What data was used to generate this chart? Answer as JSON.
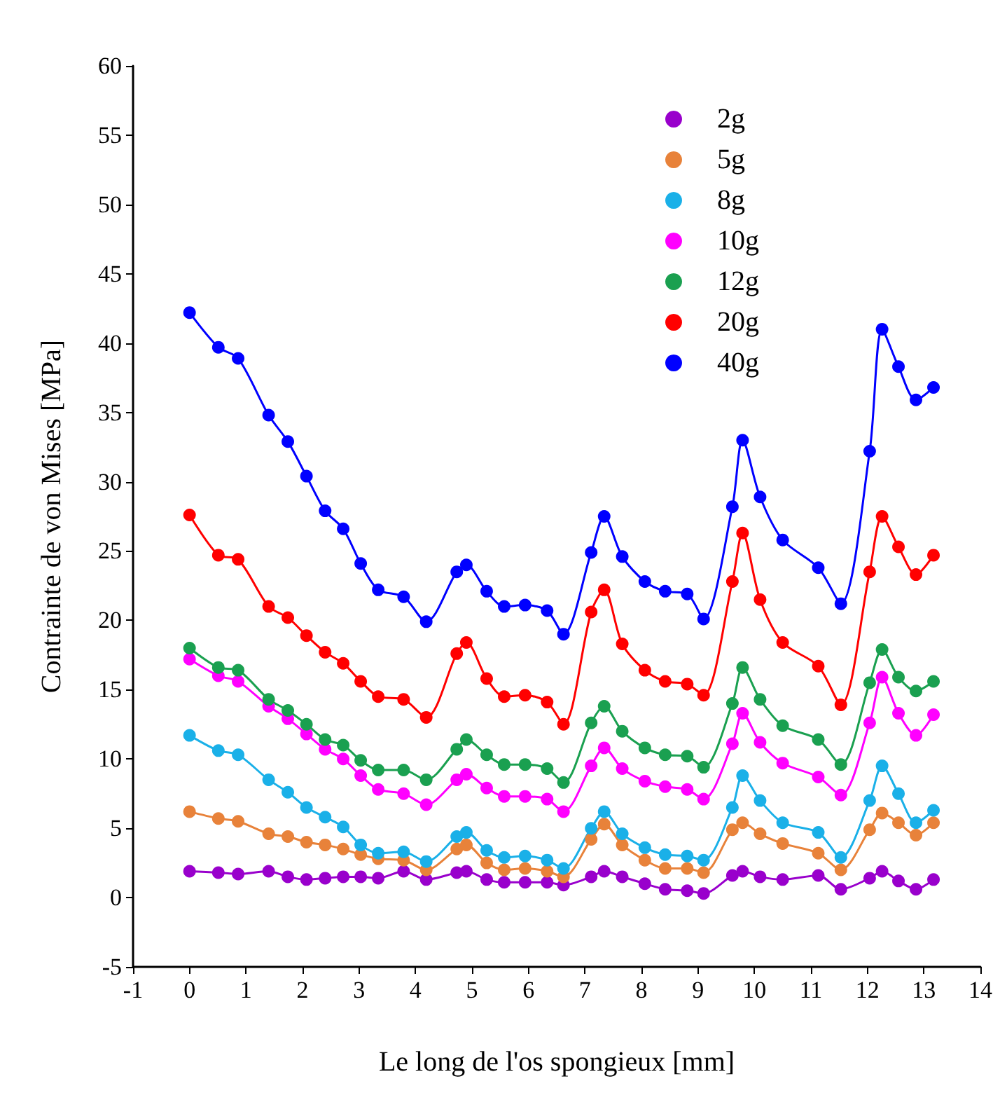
{
  "chart_data": {
    "type": "line",
    "xlabel": "Le long de l'os spongieux [mm]",
    "ylabel": "Contrainte de von Mises [MPa]",
    "x": [
      0,
      0.51,
      0.86,
      1.4,
      1.74,
      2.07,
      2.4,
      2.72,
      3.03,
      3.34,
      3.79,
      4.19,
      4.73,
      4.9,
      5.26,
      5.57,
      5.94,
      6.33,
      6.62,
      7.11,
      7.34,
      7.66,
      8.06,
      8.42,
      8.81,
      9.1,
      9.61,
      9.79,
      10.1,
      10.5,
      11.13,
      11.53,
      12.04,
      12.26,
      12.55,
      12.86,
      13.17
    ],
    "series": [
      {
        "name": "2g",
        "color": "#9900cc",
        "values": [
          1.9,
          1.8,
          1.7,
          1.9,
          1.5,
          1.3,
          1.4,
          1.5,
          1.5,
          1.4,
          1.9,
          1.3,
          1.8,
          1.9,
          1.3,
          1.1,
          1.1,
          1.1,
          0.9,
          1.5,
          1.9,
          1.5,
          1.0,
          0.6,
          0.5,
          0.3,
          1.6,
          1.9,
          1.5,
          1.3,
          1.6,
          0.6,
          1.4,
          1.9,
          1.2,
          0.6,
          1.3
        ]
      },
      {
        "name": "5g",
        "color": "#e8823a",
        "values": [
          6.2,
          5.7,
          5.5,
          4.6,
          4.4,
          4.0,
          3.8,
          3.5,
          3.1,
          2.8,
          2.7,
          2.0,
          3.5,
          3.8,
          2.5,
          2.0,
          2.1,
          1.9,
          1.5,
          4.2,
          5.3,
          3.8,
          2.7,
          2.1,
          2.1,
          1.8,
          4.9,
          5.4,
          4.6,
          3.9,
          3.2,
          2.0,
          4.9,
          6.1,
          5.4,
          4.5,
          5.4
        ]
      },
      {
        "name": "8g",
        "color": "#1ab0e8",
        "values": [
          11.7,
          10.6,
          10.3,
          8.5,
          7.6,
          6.5,
          5.8,
          5.1,
          3.8,
          3.2,
          3.3,
          2.6,
          4.4,
          4.7,
          3.4,
          2.9,
          3.0,
          2.7,
          2.1,
          5.0,
          6.2,
          4.6,
          3.6,
          3.1,
          3.0,
          2.7,
          6.5,
          8.8,
          7.0,
          5.4,
          4.7,
          2.9,
          7.0,
          9.5,
          7.5,
          5.4,
          6.3
        ]
      },
      {
        "name": "10g",
        "color": "#ff00ff",
        "values": [
          17.2,
          16.0,
          15.6,
          13.8,
          12.9,
          11.8,
          10.7,
          10.0,
          8.8,
          7.8,
          7.5,
          6.7,
          8.5,
          8.9,
          7.9,
          7.3,
          7.3,
          7.1,
          6.2,
          9.5,
          10.8,
          9.3,
          8.4,
          8.0,
          7.8,
          7.1,
          11.1,
          13.3,
          11.2,
          9.7,
          8.7,
          7.4,
          12.6,
          15.9,
          13.3,
          11.7,
          13.2
        ]
      },
      {
        "name": "12g",
        "color": "#1aa050",
        "values": [
          18.0,
          16.6,
          16.4,
          14.3,
          13.5,
          12.5,
          11.4,
          11.0,
          9.9,
          9.2,
          9.2,
          8.5,
          10.7,
          11.4,
          10.3,
          9.6,
          9.6,
          9.3,
          8.3,
          12.6,
          13.8,
          12.0,
          10.8,
          10.3,
          10.2,
          9.4,
          14.0,
          16.6,
          14.3,
          12.4,
          11.4,
          9.6,
          15.5,
          17.9,
          15.9,
          14.9,
          15.6
        ]
      },
      {
        "name": "20g",
        "color": "#ff0000",
        "values": [
          27.6,
          24.7,
          24.4,
          21.0,
          20.2,
          18.9,
          17.7,
          16.9,
          15.6,
          14.5,
          14.3,
          13.0,
          17.6,
          18.4,
          15.8,
          14.5,
          14.6,
          14.1,
          12.5,
          20.6,
          22.2,
          18.3,
          16.4,
          15.6,
          15.4,
          14.6,
          22.8,
          26.3,
          21.5,
          18.4,
          16.7,
          13.9,
          23.5,
          27.5,
          25.3,
          23.3,
          24.7
        ]
      },
      {
        "name": "40g",
        "color": "#0000ff",
        "values": [
          42.2,
          39.7,
          38.9,
          34.8,
          32.9,
          30.4,
          27.9,
          26.6,
          24.1,
          22.2,
          21.7,
          19.9,
          23.5,
          24.0,
          22.1,
          21.0,
          21.1,
          20.7,
          19.0,
          24.9,
          27.5,
          24.6,
          22.8,
          22.1,
          21.9,
          20.1,
          28.2,
          33.0,
          28.9,
          25.8,
          23.8,
          21.2,
          32.2,
          41.0,
          38.3,
          35.9,
          36.8
        ]
      }
    ],
    "xlim": [
      -1,
      14
    ],
    "xticks": [
      -1,
      0,
      1,
      2,
      3,
      4,
      5,
      6,
      7,
      8,
      9,
      10,
      11,
      12,
      13,
      14
    ],
    "ylim": [
      -5,
      60
    ],
    "yticks": [
      -5,
      0,
      5,
      10,
      15,
      20,
      25,
      30,
      35,
      40,
      45,
      50,
      55,
      60
    ],
    "grid": false,
    "legend": "top right",
    "marker": "circle",
    "line_style": "solid"
  }
}
